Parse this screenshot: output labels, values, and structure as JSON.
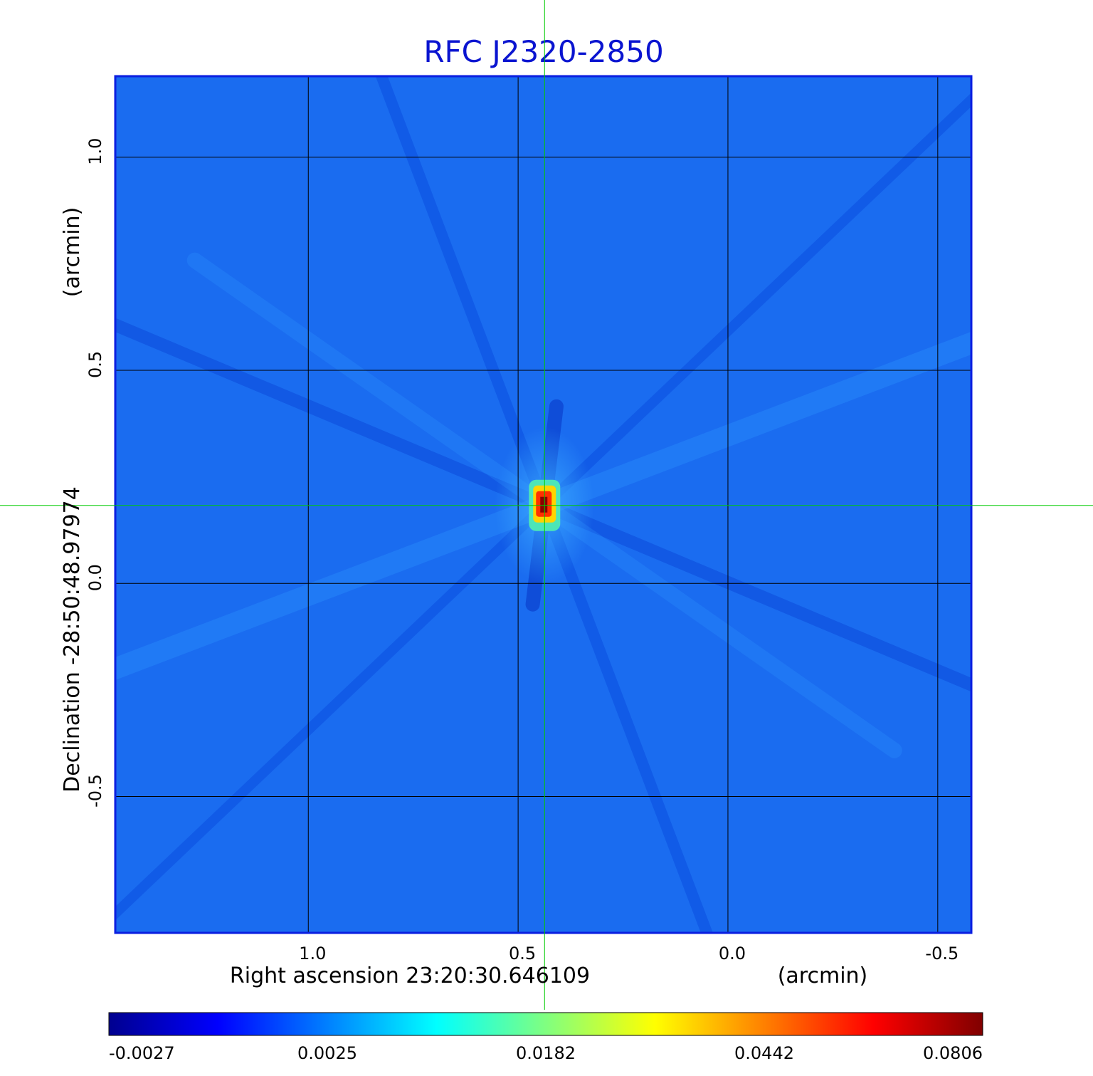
{
  "chart_data": {
    "type": "heatmap",
    "title": "RFC J2320-2850",
    "xlabel": "Right ascension  23:20:30.646109",
    "xunit": "(arcmin)",
    "ylabel": "Declination  -28:50:48.97974",
    "yunit": "(arcmin)",
    "xlim": [
      1.46,
      -0.58
    ],
    "ylim": [
      -0.82,
      1.19
    ],
    "x_ticks": [
      {
        "value": 1.0,
        "label": "1.0"
      },
      {
        "value": 0.5,
        "label": "0.5"
      },
      {
        "value": 0.0,
        "label": "0.0"
      },
      {
        "value": -0.5,
        "label": "-0.5"
      }
    ],
    "y_ticks": [
      {
        "value": 1.0,
        "label": "1.0"
      },
      {
        "value": 0.5,
        "label": "0.5"
      },
      {
        "value": 0.0,
        "label": "0.0"
      },
      {
        "value": -0.5,
        "label": "-0.5"
      }
    ],
    "grid": true,
    "crosshair": {
      "x": 0.437,
      "y": 0.183,
      "color": "#00cc00"
    },
    "source_peak": {
      "x": 0.437,
      "y": 0.183,
      "value": 0.0806
    },
    "colormap": "jet",
    "colorbar": {
      "placement": "bottom",
      "labels": [
        "-0.0027",
        "0.0025",
        "0.0182",
        "0.0442",
        "0.0806"
      ],
      "stops": [
        "#00008f",
        "#0000ff",
        "#0080ff",
        "#00ffff",
        "#80ff80",
        "#ffff00",
        "#ff8000",
        "#ff0000",
        "#800000"
      ]
    },
    "colors": {
      "title": "#0a14d0",
      "frame": "#0a1ee0",
      "background_field": "#1a6cf0",
      "grid": "#000000",
      "crosshair": "#00cc00"
    }
  }
}
